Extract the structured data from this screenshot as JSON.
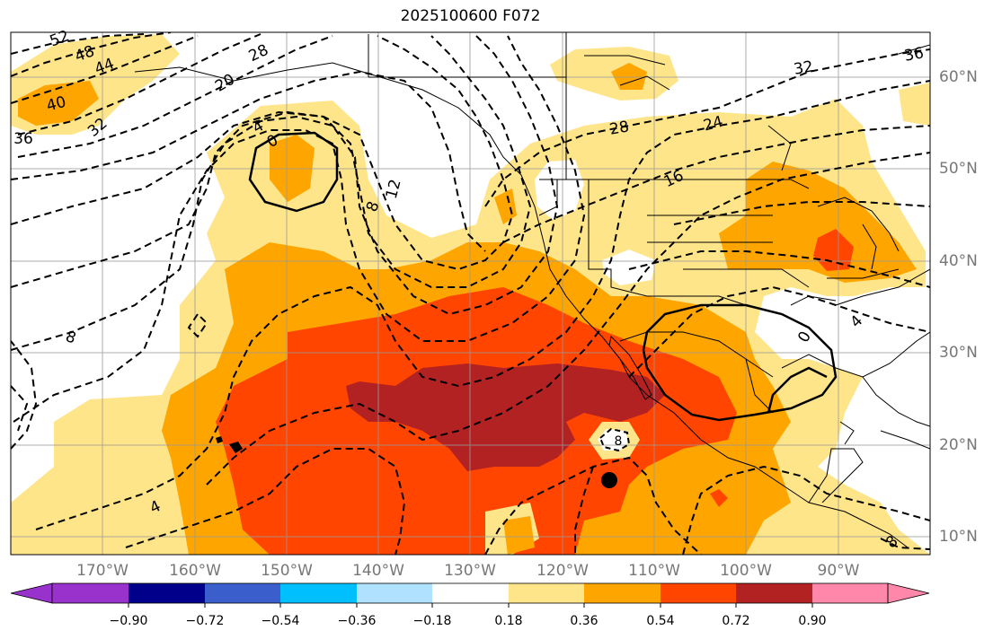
{
  "title": "2025100600 F072",
  "lat_labels": [
    "60°N",
    "50°N",
    "40°N",
    "30°N",
    "20°N",
    "10°N"
  ],
  "lon_labels": [
    "170°W",
    "160°W",
    "150°W",
    "140°W",
    "130°W",
    "120°W",
    "110°W",
    "100°W",
    "90°W"
  ],
  "colorbar": {
    "ticks": [
      "−0.90",
      "−0.72",
      "−0.54",
      "−0.36",
      "−0.18",
      "0.18",
      "0.36",
      "0.54",
      "0.72",
      "0.90"
    ],
    "colors": [
      "#9932cc",
      "#00008b",
      "#3a5fcd",
      "#00bfff",
      "#b0e2ff",
      "#ffffff",
      "#ffe58a",
      "#ffa500",
      "#ff4500",
      "#b22222",
      "#ff88aa"
    ]
  },
  "contour_labels": [
    {
      "text": "52",
      "rot": -20
    },
    {
      "text": "48",
      "rot": -20
    },
    {
      "text": "44",
      "rot": -20
    },
    {
      "text": "40",
      "rot": -15
    },
    {
      "text": "36",
      "rot": 0
    },
    {
      "text": "32",
      "rot": -40
    },
    {
      "text": "28",
      "rot": -25
    },
    {
      "text": "20",
      "rot": -30
    },
    {
      "text": "4",
      "rot": -30
    },
    {
      "text": "0",
      "rot": -30
    },
    {
      "text": "8",
      "rot": -70
    },
    {
      "text": "12",
      "rot": -75
    },
    {
      "text": "28",
      "rot": -10
    },
    {
      "text": "24",
      "rot": -15
    },
    {
      "text": "16",
      "rot": -25
    },
    {
      "text": "32",
      "rot": -10
    },
    {
      "text": "36",
      "rot": -10
    },
    {
      "text": "8",
      "rot": 20
    },
    {
      "text": "4",
      "rot": -25
    },
    {
      "text": "0",
      "rot": -60
    },
    {
      "text": "4",
      "rot": -45
    },
    {
      "text": "8",
      "rot": 0
    },
    {
      "text": "8",
      "rot": -40
    }
  ]
}
